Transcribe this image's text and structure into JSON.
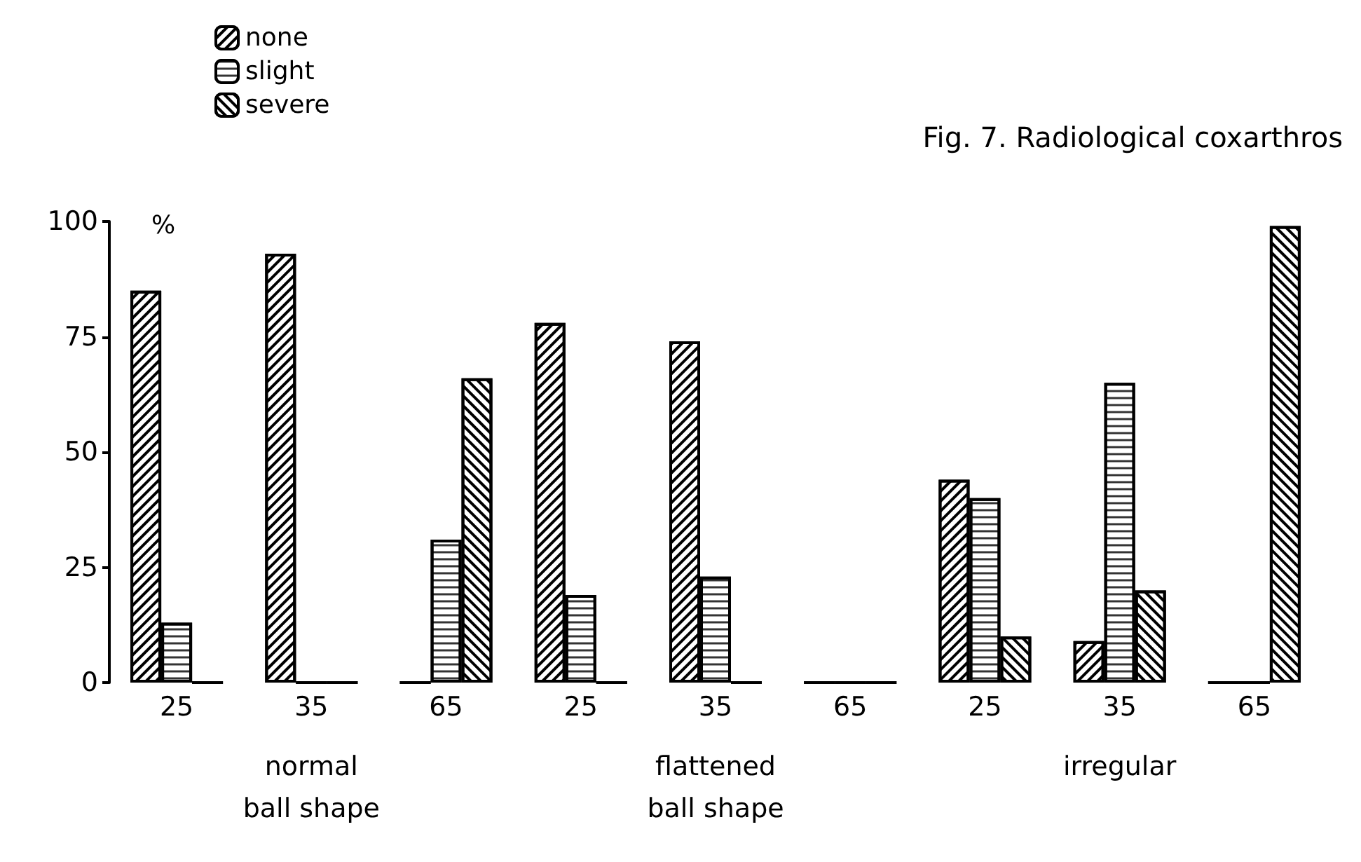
{
  "chart_data": {
    "type": "bar",
    "title": "Fig. 7. Radiological coxarthros",
    "categories": [
      "25",
      "35",
      "65",
      "25",
      "35",
      "65",
      "25",
      "35",
      "65"
    ],
    "series": [
      {
        "name": "none",
        "color": "#000000",
        "values": [
          85,
          93,
          0,
          78,
          74,
          0,
          44,
          9,
          0
        ]
      },
      {
        "name": "slight",
        "color": "#000000",
        "values": [
          13,
          0,
          31,
          19,
          23,
          0,
          40,
          65,
          0
        ]
      },
      {
        "name": "severe",
        "color": "#000000",
        "values": [
          0,
          0,
          66,
          0,
          0,
          0,
          10,
          20,
          99
        ]
      }
    ],
    "ylabel": "%",
    "ylim": [
      0,
      100
    ],
    "yticks": [
      0,
      25,
      50,
      75,
      100
    ],
    "annotations": [
      "normal\nball shape",
      "flattened\nball shape",
      "irregular"
    ],
    "grid": false,
    "legend": "top left"
  }
}
